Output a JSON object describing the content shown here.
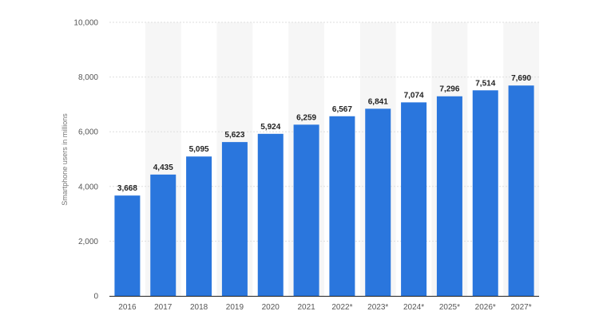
{
  "chart_data": {
    "type": "bar",
    "title": "",
    "xlabel": "",
    "ylabel": "Smartphone users in millions",
    "ylim": [
      0,
      10000
    ],
    "yticks": [
      0,
      2000,
      4000,
      6000,
      8000,
      10000
    ],
    "ytick_labels": [
      "0",
      "2,000",
      "4,000",
      "6,000",
      "8,000",
      "10,000"
    ],
    "grid": true,
    "categories": [
      "2016",
      "2017",
      "2018",
      "2019",
      "2020",
      "2021",
      "2022*",
      "2023*",
      "2024*",
      "2025*",
      "2026*",
      "2027*"
    ],
    "values": [
      3668,
      4435,
      5095,
      5623,
      5924,
      6259,
      6567,
      6841,
      7074,
      7296,
      7514,
      7690
    ],
    "value_labels": [
      "3,668",
      "4,435",
      "5,095",
      "5,623",
      "5,924",
      "6,259",
      "6,567",
      "6,841",
      "7,074",
      "7,296",
      "7,514",
      "7,690"
    ],
    "colors": {
      "bar": "#2a76dd",
      "band": "#f6f6f6",
      "grid": "#dedede",
      "baseline": "#222222"
    }
  }
}
